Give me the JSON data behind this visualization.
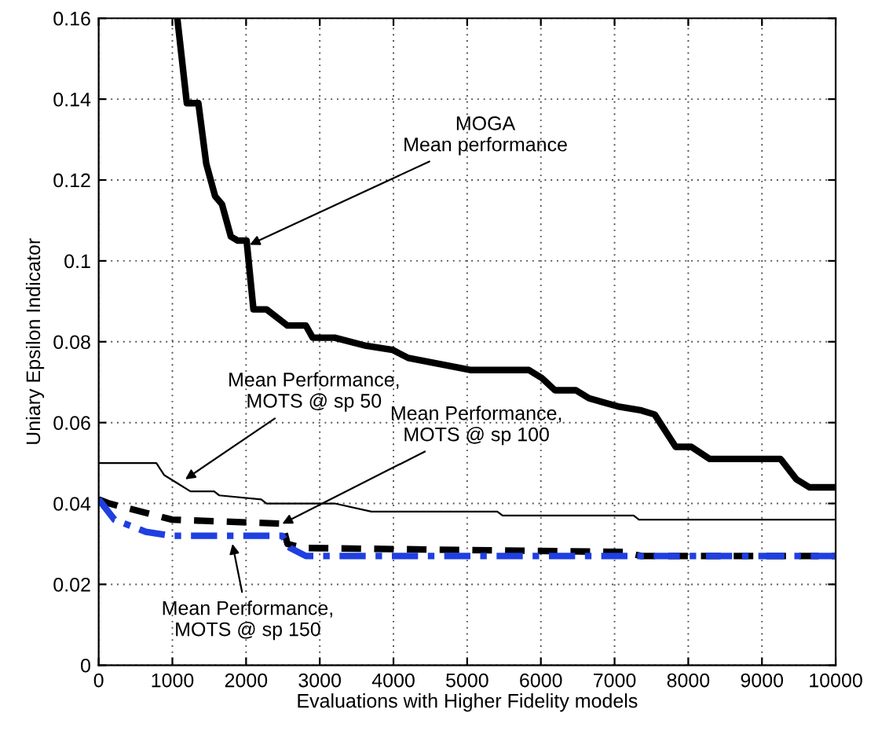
{
  "chart_data": {
    "type": "line",
    "xlabel": "Evaluations with Higher Fidelity models",
    "ylabel": "Uniary Epsilon Indicator",
    "xlim": [
      0,
      10000
    ],
    "xticks": [
      0,
      1000,
      2000,
      3000,
      4000,
      5000,
      6000,
      7000,
      8000,
      9000,
      10000
    ],
    "ylim": [
      0,
      0.16
    ],
    "yticks": [
      0,
      0.02,
      0.04,
      0.06,
      0.08,
      0.1,
      0.12,
      0.14,
      0.16
    ],
    "grid": true,
    "marker": "none",
    "series": [
      {
        "color": "#000000",
        "line_style": "solid",
        "x": [
          1067,
          1196,
          1353,
          1460,
          1580,
          1673,
          1794,
          1887,
          2007,
          2100,
          2278,
          2562,
          2812,
          2904,
          3202,
          3629,
          3986,
          4200,
          5054,
          5837,
          6014,
          6191,
          6476,
          6655,
          7045,
          7365,
          7545,
          7829,
          8042,
          8292,
          8683,
          9253,
          9466,
          9644,
          10000
        ],
        "values": [
          0.16,
          0.139,
          0.139,
          0.124,
          0.116,
          0.114,
          0.106,
          0.105,
          0.105,
          0.088,
          0.088,
          0.084,
          0.084,
          0.081,
          0.081,
          0.079,
          0.078,
          0.076,
          0.073,
          0.073,
          0.071,
          0.068,
          0.068,
          0.066,
          0.064,
          0.063,
          0.062,
          0.054,
          0.054,
          0.051,
          0.051,
          0.051,
          0.046,
          0.044,
          0.044
        ]
      },
      {
        "color": "#000000",
        "line_style": "solid",
        "x": [
          0,
          783,
          890,
          1067,
          1245,
          1566,
          1637,
          2206,
          2278,
          3202,
          3701,
          5409,
          5480,
          7259,
          7331,
          10000
        ],
        "values": [
          0.05,
          0.05,
          0.047,
          0.045,
          0.043,
          0.043,
          0.042,
          0.041,
          0.04,
          0.04,
          0.038,
          0.038,
          0.037,
          0.037,
          0.036,
          0.036
        ]
      },
      {
        "color": "#000000",
        "line_style": "dashed",
        "x": [
          0,
          143,
          357,
          997,
          2491,
          2562,
          2775,
          7117,
          7365,
          10000
        ],
        "values": [
          0.041,
          0.04,
          0.039,
          0.036,
          0.035,
          0.03,
          0.029,
          0.028,
          0.027,
          0.027
        ]
      },
      {
        "color": "#1f3fe0",
        "line_style": "dashdot",
        "x": [
          0,
          214,
          641,
          997,
          2491,
          2598,
          2812,
          4910,
          10000
        ],
        "values": [
          0.041,
          0.036,
          0.033,
          0.032,
          0.032,
          0.029,
          0.027,
          0.027,
          0.027
        ]
      }
    ],
    "annotations": [
      {
        "text": "MOGA\nMean performance",
        "x": 2050,
        "y": 0.104
      },
      {
        "text": "Mean Performance,\nMOTS @ sp 50",
        "x": 1175,
        "y": 0.046
      },
      {
        "text": "Mean Performance,\nMOTS @ sp 100",
        "x": 2491,
        "y": 0.035
      },
      {
        "text": "Mean Performance,\nMOTS @ sp 150",
        "x": 1815,
        "y": 0.03
      }
    ]
  }
}
